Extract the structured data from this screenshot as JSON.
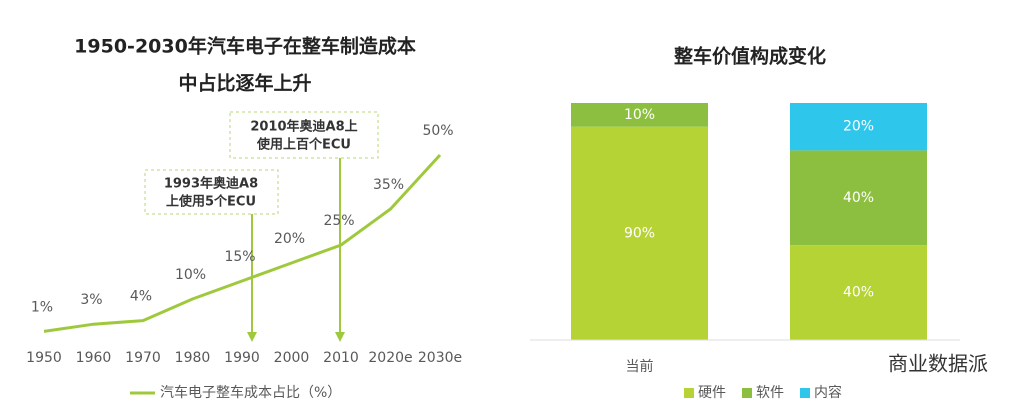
{
  "chart_data": [
    {
      "type": "line",
      "title": [
        "1950-2030年汽车电子在整车制造成本",
        "中占比逐年上升"
      ],
      "categories": [
        "1950",
        "1960",
        "1970",
        "1980",
        "1990",
        "2000",
        "2010",
        "2020e",
        "2030e"
      ],
      "series": [
        {
          "name": "汽车电子整车成本占比（%）",
          "color": "#9fc93c",
          "values": [
            1,
            3,
            4,
            10,
            15,
            20,
            25,
            35,
            50
          ],
          "value_labels": [
            "1%",
            "3%",
            "4%",
            "10%",
            "15%",
            "20%",
            "25%",
            "35%",
            "50%"
          ]
        }
      ],
      "annotations": [
        {
          "lines": [
            "1993年奥迪A8",
            "上使用5个ECU"
          ]
        },
        {
          "lines": [
            "2010年奥迪A8上",
            "使用上百个ECU"
          ]
        }
      ]
    },
    {
      "type": "stacked-bar",
      "title": "整车价值构成变化",
      "categories": [
        "当前",
        null
      ],
      "series": [
        {
          "name": "硬件",
          "color": "#b5d334",
          "values": [
            90,
            40
          ],
          "value_labels": [
            "90%",
            "40%"
          ]
        },
        {
          "name": "软件",
          "color": "#8cbf3f",
          "values": [
            10,
            40
          ],
          "value_labels": [
            "10%",
            "40%"
          ]
        },
        {
          "name": "内容",
          "color": "#2ec6ea",
          "values": [
            null,
            20
          ],
          "value_labels": [
            null,
            "20%"
          ]
        }
      ]
    },
    {
      "type": "watermark",
      "text": "商业数据派"
    }
  ]
}
